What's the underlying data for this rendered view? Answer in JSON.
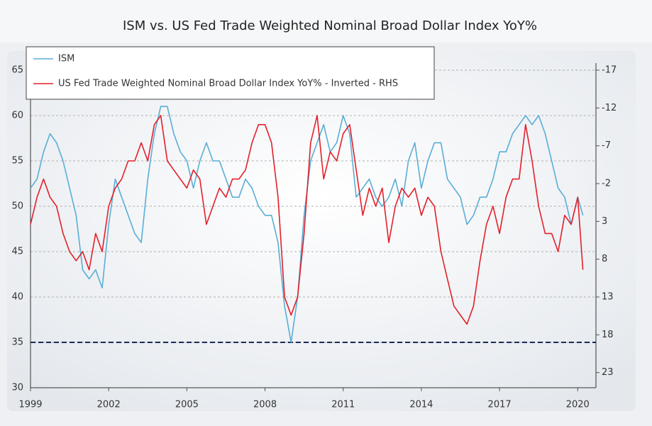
{
  "chart_data": {
    "type": "line",
    "title": "ISM vs. US Fed Trade Weighted Nominal Broad Dollar Index YoY%",
    "x": [
      1999,
      1999.25,
      1999.5,
      1999.75,
      2000,
      2000.25,
      2000.5,
      2000.75,
      2001,
      2001.25,
      2001.5,
      2001.75,
      2002,
      2002.25,
      2002.5,
      2002.75,
      2003,
      2003.25,
      2003.5,
      2003.75,
      2004,
      2004.25,
      2004.5,
      2004.75,
      2005,
      2005.25,
      2005.5,
      2005.75,
      2006,
      2006.25,
      2006.5,
      2006.75,
      2007,
      2007.25,
      2007.5,
      2007.75,
      2008,
      2008.25,
      2008.5,
      2008.75,
      2009,
      2009.25,
      2009.5,
      2009.75,
      2010,
      2010.25,
      2010.5,
      2010.75,
      2011,
      2011.25,
      2011.5,
      2011.75,
      2012,
      2012.25,
      2012.5,
      2012.75,
      2013,
      2013.25,
      2013.5,
      2013.75,
      2014,
      2014.25,
      2014.5,
      2014.75,
      2015,
      2015.25,
      2015.5,
      2015.75,
      2016,
      2016.25,
      2016.5,
      2016.75,
      2017,
      2017.25,
      2017.5,
      2017.75,
      2018,
      2018.25,
      2018.5,
      2018.75,
      2019,
      2019.25,
      2019.5,
      2019.75,
      2020,
      2020.2
    ],
    "series": [
      {
        "name": "ISM",
        "color": "#5aaed6",
        "values": [
          52,
          53,
          56,
          58,
          57,
          55,
          52,
          49,
          43,
          42,
          43,
          41,
          48,
          53,
          51,
          49,
          47,
          46,
          53,
          58,
          61,
          61,
          58,
          56,
          55,
          52,
          55,
          57,
          55,
          55,
          53,
          51,
          51,
          53,
          52,
          50,
          49,
          49,
          46,
          39,
          35,
          40,
          49,
          55,
          57,
          59,
          56,
          57,
          60,
          58,
          51,
          52,
          53,
          51,
          50,
          51,
          53,
          50,
          55,
          57,
          52,
          55,
          57,
          57,
          53,
          52,
          51,
          48,
          49,
          51,
          51,
          53,
          56,
          56,
          58,
          59,
          60,
          59,
          60,
          58,
          55,
          52,
          51,
          48,
          51,
          49
        ]
      },
      {
        "name": "US Fed Trade Weighted Nominal Broad Dollar Index YoY% - Inverted - RHS",
        "color": "#e3202a",
        "axis": "y2",
        "values": [
          3.4,
          -0.2,
          -2.6,
          -0.2,
          1,
          4.6,
          7,
          8.2,
          7,
          9.4,
          4.6,
          7,
          1,
          -1.4,
          -2.6,
          -5,
          -5,
          -7.4,
          -5,
          -9.8,
          -11,
          -5,
          -3.8,
          -2.6,
          -1.4,
          -3.8,
          -2.6,
          3.4,
          1,
          -1.4,
          -0.2,
          -2.6,
          -2.6,
          -3.8,
          -7.4,
          -9.8,
          -9.8,
          -7.4,
          -0.2,
          13,
          15.4,
          13,
          4.6,
          -7.4,
          -11,
          -2.6,
          -6.2,
          -5,
          -8.6,
          -9.8,
          -3.8,
          2.2,
          -1.4,
          1,
          -1.4,
          5.8,
          1,
          -1.4,
          -0.2,
          -1.4,
          2.2,
          -0.2,
          1,
          7,
          10.6,
          14.2,
          15.4,
          16.6,
          14.2,
          8.2,
          3.4,
          1,
          4.6,
          -0.2,
          -2.6,
          -2.6,
          -9.8,
          -5,
          1,
          4.6,
          4.6,
          7,
          2.2,
          3.4,
          -0.2,
          9.4
        ]
      }
    ],
    "xlim": [
      1999,
      2020.7
    ],
    "xticks": [
      1999,
      2002,
      2005,
      2008,
      2011,
      2014,
      2017,
      2020
    ],
    "ylim": [
      30,
      65
    ],
    "yticks": [
      30,
      35,
      40,
      45,
      50,
      55,
      60,
      65
    ],
    "y2lim": [
      25,
      -17
    ],
    "y2ticks": [
      -17,
      -12,
      -7,
      -2,
      3,
      8,
      13,
      18,
      23
    ],
    "hline": 35,
    "hline_color": "#1a2a5a",
    "grid": true,
    "legend": "top-left"
  }
}
